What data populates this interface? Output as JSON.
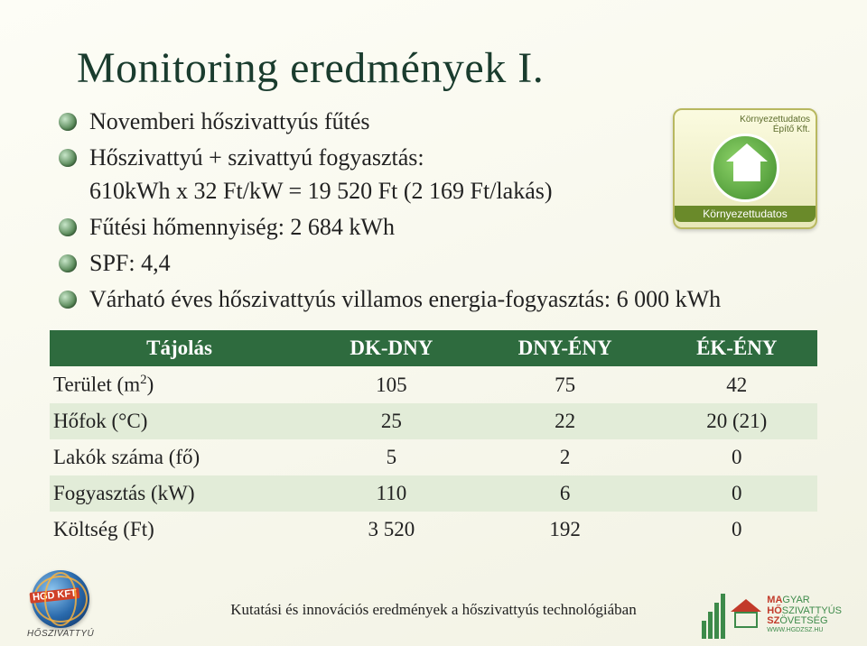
{
  "title": "Monitoring eredmények I.",
  "bullets": {
    "b1": "Novemberi hőszivattyús fűtés",
    "b2": "Hőszivattyú + szivattyú fogyasztás:",
    "b2_line2": "610kWh x 32 Ft/kW = 19 520 Ft (2 169 Ft/lakás)",
    "b3": "Fűtési hőmennyiség: 2 684 kWh",
    "b4": "SPF: 4,4",
    "b5": "Várható éves hőszivattyús villamos energia-fogyasztás: 6 000 kWh"
  },
  "badge": {
    "line1": "Környezettudatos",
    "line2": "Építő Kft."
  },
  "table": {
    "headers": [
      "Tájolás",
      "DK-DNY",
      "DNY-ÉNY",
      "ÉK-ÉNY"
    ],
    "rows": [
      {
        "label": "Terület (m²)",
        "c1": "105",
        "c2": "75",
        "c3": "42"
      },
      {
        "label": "Hőfok (°C)",
        "c1": "25",
        "c2": "22",
        "c3": "20 (21)"
      },
      {
        "label": "Lakók száma (fő)",
        "c1": "5",
        "c2": "2",
        "c3": "0"
      },
      {
        "label": "Fogyasztás (kW)",
        "c1": "110",
        "c2": "6",
        "c3": "0"
      },
      {
        "label": "Költség (Ft)",
        "c1": "3 520",
        "c2": "192",
        "c3": "0"
      }
    ],
    "header_bg": "#2e6b3e",
    "alt_bg": "#e2ecd8"
  },
  "footer": "Kutatási és innovációs eredmények a hőszivattyús technológiában",
  "logo_left": {
    "tag": "HGD KFT",
    "sub": "HŐSZIVATTYÚ"
  },
  "logo_right": {
    "l1_a": "MA",
    "l1_b": "GYAR",
    "l2_a": "HŐ",
    "l2_b": "SZIVATTYÚS",
    "l3_a": "SZ",
    "l3_b": "ÖVETSÉG",
    "url": "WWW.HGDZSZ.HU"
  }
}
